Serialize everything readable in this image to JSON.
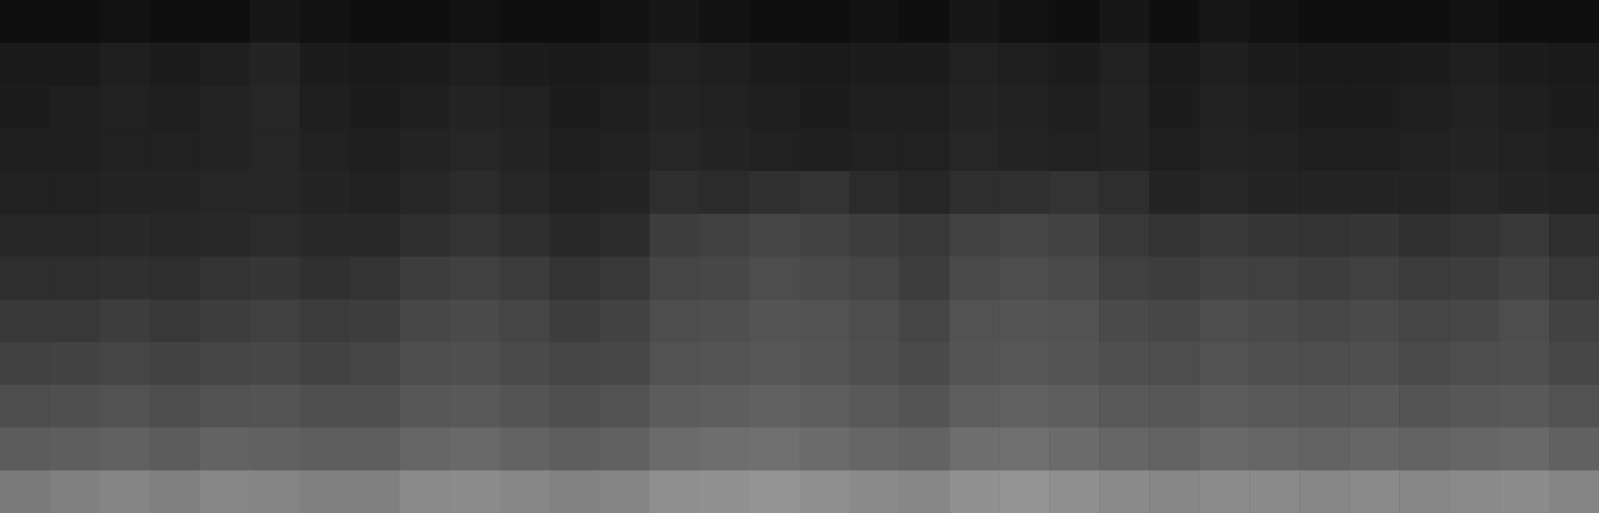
{
  "chart_data": {
    "type": "heatmap",
    "tick_labels": false,
    "color": "#ffffff",
    "zlim": [
      0,
      100
    ],
    "cells": [
      [
        6,
        6,
        7,
        6,
        6,
        9,
        7,
        6,
        6,
        7,
        6,
        6,
        7,
        9,
        7,
        6,
        6,
        7,
        6,
        9,
        7,
        6,
        9,
        6,
        9,
        7,
        6,
        6,
        6,
        7,
        6,
        6
      ],
      [
        10,
        10,
        12,
        11,
        12,
        14,
        11,
        10,
        11,
        12,
        11,
        10,
        11,
        13,
        12,
        11,
        10,
        11,
        11,
        13,
        12,
        11,
        13,
        10,
        12,
        11,
        10,
        10,
        11,
        12,
        11,
        10
      ],
      [
        11,
        12,
        13,
        12,
        14,
        15,
        12,
        11,
        12,
        14,
        13,
        11,
        12,
        14,
        13,
        12,
        11,
        12,
        12,
        14,
        13,
        12,
        14,
        11,
        13,
        12,
        11,
        11,
        12,
        13,
        12,
        11
      ],
      [
        12,
        12,
        13,
        13,
        14,
        15,
        13,
        12,
        14,
        15,
        14,
        12,
        13,
        15,
        14,
        13,
        12,
        13,
        13,
        15,
        14,
        13,
        14,
        12,
        14,
        13,
        12,
        12,
        13,
        14,
        13,
        12
      ],
      [
        13,
        13,
        14,
        14,
        15,
        15,
        14,
        13,
        15,
        17,
        15,
        13,
        14,
        18,
        17,
        19,
        20,
        17,
        15,
        18,
        19,
        20,
        18,
        14,
        15,
        14,
        14,
        14,
        14,
        15,
        14,
        13
      ],
      [
        15,
        15,
        16,
        15,
        16,
        17,
        16,
        16,
        18,
        20,
        18,
        16,
        17,
        24,
        25,
        27,
        26,
        24,
        22,
        26,
        27,
        26,
        22,
        20,
        22,
        21,
        20,
        21,
        19,
        20,
        22,
        18
      ],
      [
        18,
        18,
        19,
        18,
        20,
        21,
        19,
        20,
        24,
        25,
        23,
        20,
        22,
        27,
        28,
        30,
        29,
        27,
        24,
        29,
        30,
        29,
        25,
        24,
        26,
        25,
        24,
        25,
        23,
        24,
        26,
        22
      ],
      [
        22,
        22,
        24,
        22,
        24,
        25,
        23,
        24,
        28,
        29,
        27,
        24,
        26,
        30,
        31,
        33,
        32,
        30,
        27,
        32,
        33,
        32,
        29,
        28,
        30,
        29,
        28,
        29,
        27,
        28,
        30,
        26
      ],
      [
        25,
        26,
        27,
        26,
        27,
        28,
        26,
        27,
        30,
        31,
        29,
        27,
        28,
        32,
        33,
        34,
        33,
        31,
        29,
        33,
        34,
        33,
        31,
        30,
        32,
        31,
        30,
        31,
        29,
        30,
        31,
        28
      ],
      [
        30,
        31,
        32,
        30,
        32,
        33,
        31,
        31,
        34,
        35,
        33,
        31,
        32,
        36,
        37,
        38,
        37,
        35,
        33,
        37,
        38,
        37,
        35,
        34,
        36,
        35,
        34,
        35,
        33,
        34,
        35,
        32
      ],
      [
        36,
        37,
        38,
        36,
        39,
        38,
        37,
        37,
        40,
        41,
        39,
        37,
        38,
        42,
        43,
        44,
        42,
        40,
        39,
        43,
        44,
        42,
        40,
        39,
        41,
        40,
        39,
        40,
        39,
        40,
        41,
        38
      ],
      [
        48,
        50,
        52,
        50,
        53,
        52,
        50,
        50,
        54,
        55,
        53,
        51,
        52,
        56,
        57,
        58,
        56,
        54,
        53,
        57,
        58,
        56,
        54,
        53,
        55,
        54,
        53,
        54,
        53,
        54,
        55,
        52
      ]
    ]
  }
}
